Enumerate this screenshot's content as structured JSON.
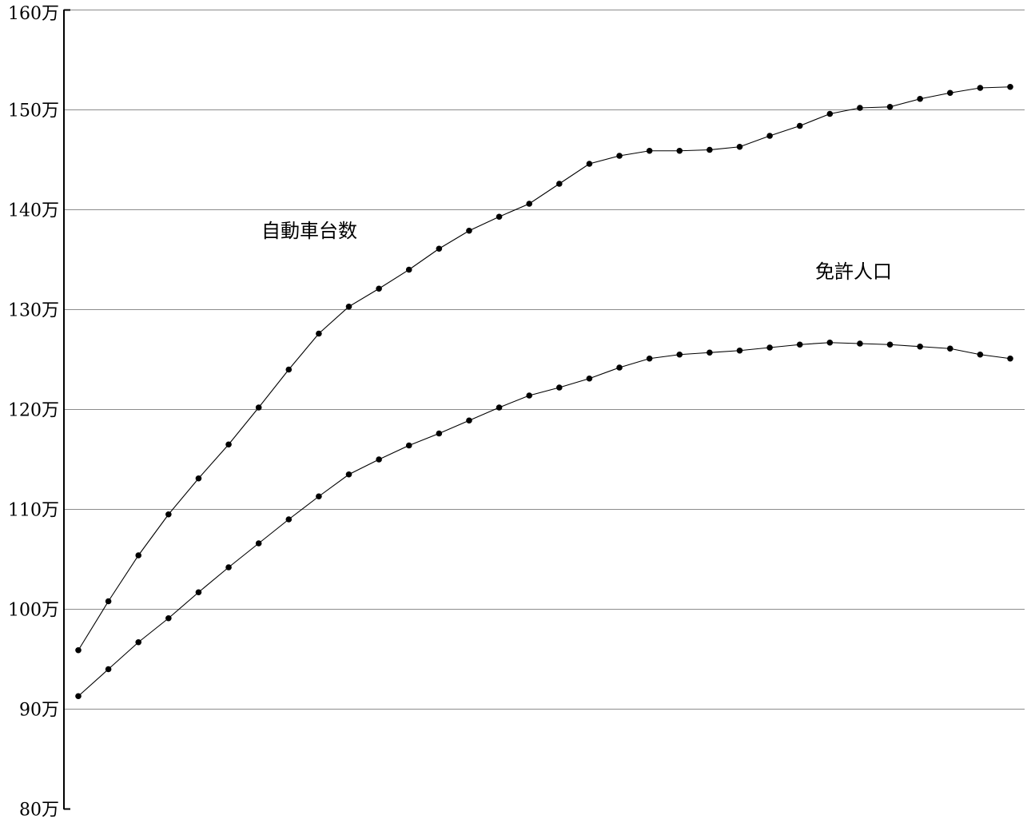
{
  "chart_data": {
    "type": "line",
    "title": "",
    "xlabel": "",
    "ylabel": "",
    "ylim": [
      800000,
      1600000
    ],
    "y_ticks": [
      {
        "value": 1600000,
        "label": "160万"
      },
      {
        "value": 1500000,
        "label": "150万"
      },
      {
        "value": 1400000,
        "label": "140万"
      },
      {
        "value": 1300000,
        "label": "130万"
      },
      {
        "value": 1200000,
        "label": "120万"
      },
      {
        "value": 1100000,
        "label": "110万"
      },
      {
        "value": 1000000,
        "label": "100万"
      },
      {
        "value": 900000,
        "label": "90万"
      },
      {
        "value": 800000,
        "label": "80万"
      }
    ],
    "grid": true,
    "legend": "none",
    "x": [
      1,
      2,
      3,
      4,
      5,
      6,
      7,
      8,
      9,
      10,
      11,
      12,
      13,
      14,
      15,
      16,
      17,
      18,
      19,
      20,
      21,
      22,
      23,
      24,
      25,
      26,
      27,
      28,
      29,
      30,
      31,
      32
    ],
    "series": [
      {
        "name": "自動車台数",
        "color": "#000000",
        "values": [
          959000,
          1008000,
          1054000,
          1095000,
          1131000,
          1165000,
          1202000,
          1240000,
          1276000,
          1303000,
          1321000,
          1340000,
          1361000,
          1379000,
          1393000,
          1406000,
          1426000,
          1446000,
          1454000,
          1459000,
          1459000,
          1460000,
          1463000,
          1474000,
          1484000,
          1496000,
          1502000,
          1503000,
          1511000,
          1517000,
          1522000,
          1523000
        ]
      },
      {
        "name": "免許人口",
        "color": "#000000",
        "values": [
          913000,
          940000,
          967000,
          991000,
          1017000,
          1042000,
          1066000,
          1090000,
          1113000,
          1135000,
          1150000,
          1164000,
          1176000,
          1189000,
          1202000,
          1214000,
          1222000,
          1231000,
          1242000,
          1251000,
          1255000,
          1257000,
          1259000,
          1262000,
          1265000,
          1267000,
          1266000,
          1265000,
          1263000,
          1261000,
          1255000,
          1251000
        ]
      }
    ]
  }
}
